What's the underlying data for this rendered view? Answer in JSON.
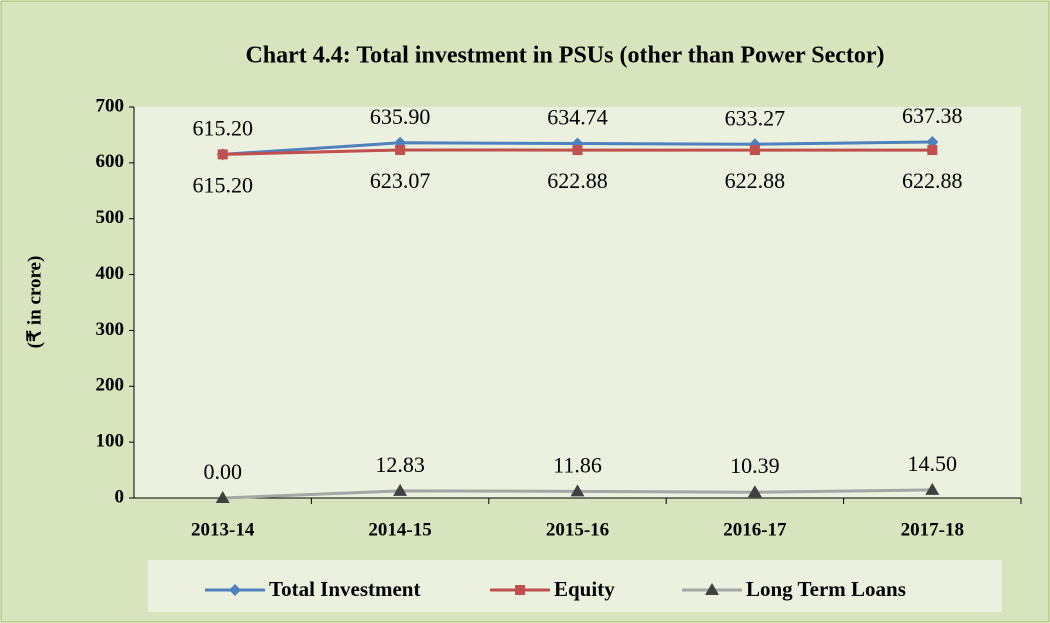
{
  "chart_data": {
    "type": "line",
    "title": "Chart 4.4: Total investment in PSUs (other than Power Sector)",
    "y_label": "(₹ in crore)",
    "categories": [
      "2013-14",
      "2014-15",
      "2015-16",
      "2016-17",
      "2017-18"
    ],
    "series": [
      {
        "name": "Total Investment",
        "color": "#4f81bd",
        "marker": "diamond",
        "label_position": "above",
        "values": [
          615.2,
          635.9,
          634.74,
          633.27,
          637.38
        ],
        "value_labels": [
          "615.20",
          "635.90",
          "634.74",
          "633.27",
          "637.38"
        ]
      },
      {
        "name": "Equity",
        "color": "#c0504d",
        "marker": "square",
        "label_position": "below",
        "values": [
          615.2,
          623.07,
          622.88,
          622.88,
          622.88
        ],
        "value_labels": [
          "615.20",
          "623.07",
          "622.88",
          "622.88",
          "622.88"
        ]
      },
      {
        "name": "Long Term Loans",
        "color": "#a6a6a6",
        "marker_color": "#404040",
        "marker": "triangle",
        "label_position": "above",
        "values": [
          0,
          12.83,
          11.86,
          10.39,
          14.5
        ],
        "value_labels": [
          "0.00",
          "12.83",
          "11.86",
          "10.39",
          "14.50"
        ]
      }
    ],
    "ylim": [
      0,
      700
    ],
    "yticks": [
      0,
      100,
      200,
      300,
      400,
      500,
      600,
      700
    ],
    "grid": false,
    "legend": "bottom"
  }
}
